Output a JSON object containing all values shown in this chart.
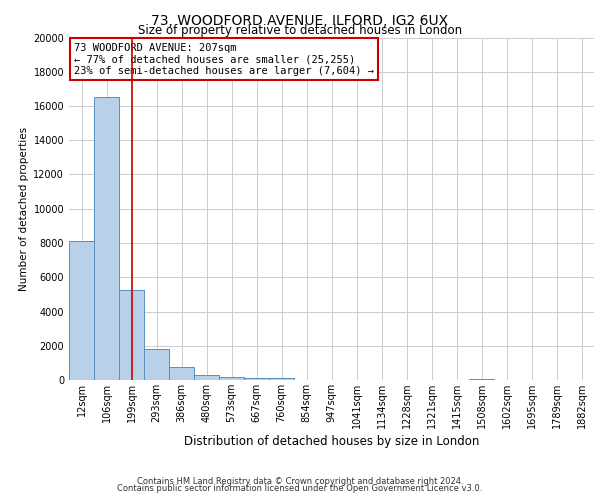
{
  "title": "73, WOODFORD AVENUE, ILFORD, IG2 6UX",
  "subtitle": "Size of property relative to detached houses in London",
  "xlabel": "Distribution of detached houses by size in London",
  "ylabel": "Number of detached properties",
  "bin_labels": [
    "12sqm",
    "106sqm",
    "199sqm",
    "293sqm",
    "386sqm",
    "480sqm",
    "573sqm",
    "667sqm",
    "760sqm",
    "854sqm",
    "947sqm",
    "1041sqm",
    "1134sqm",
    "1228sqm",
    "1321sqm",
    "1415sqm",
    "1508sqm",
    "1602sqm",
    "1695sqm",
    "1789sqm",
    "1882sqm"
  ],
  "bar_values": [
    8100,
    16500,
    5250,
    1800,
    750,
    280,
    195,
    130,
    95,
    0,
    0,
    0,
    0,
    0,
    0,
    0,
    75,
    0,
    0,
    0,
    0
  ],
  "bar_color": "#b8d0e8",
  "bar_edge_color": "#5590c0",
  "property_line_x": 2,
  "property_line_color": "#cc0000",
  "annotation_text": "73 WOODFORD AVENUE: 207sqm\n← 77% of detached houses are smaller (25,255)\n23% of semi-detached houses are larger (7,604) →",
  "annotation_box_color": "#ffffff",
  "annotation_box_edge": "#cc0000",
  "ylim": [
    0,
    20000
  ],
  "yticks": [
    0,
    2000,
    4000,
    6000,
    8000,
    10000,
    12000,
    14000,
    16000,
    18000,
    20000
  ],
  "footer_line1": "Contains HM Land Registry data © Crown copyright and database right 2024.",
  "footer_line2": "Contains public sector information licensed under the Open Government Licence v3.0.",
  "background_color": "#ffffff",
  "grid_color": "#cccccc",
  "title_fontsize": 10,
  "subtitle_fontsize": 8.5,
  "ylabel_fontsize": 7.5,
  "xlabel_fontsize": 8.5,
  "tick_fontsize": 7,
  "footer_fontsize": 6,
  "annotation_fontsize": 7.5
}
